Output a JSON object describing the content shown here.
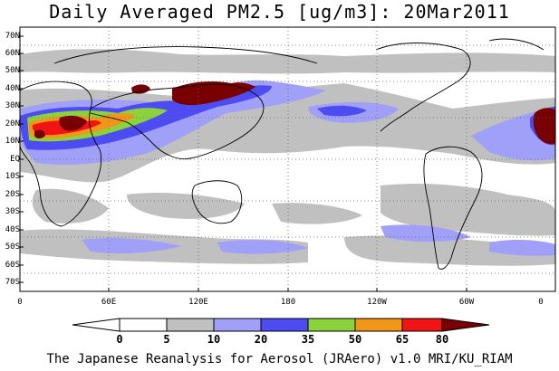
{
  "title": "Daily Averaged PM2.5 [ug/m3]: 20Mar2011",
  "footer": "The Japanese Reanalysis for Aerosol (JRAero) v1.0 MRI/KU_RIAM",
  "map": {
    "projection": "equirectangular",
    "lon_range": [
      0,
      360
    ],
    "lat_range": [
      -75,
      75
    ],
    "gridlines": "dotted",
    "lat_ticks": [
      "70N",
      "60N",
      "50N",
      "40N",
      "30N",
      "20N",
      "10N",
      "EQ",
      "10S",
      "20S",
      "30S",
      "40S",
      "50S",
      "60S",
      "70S"
    ],
    "lon_ticks": [
      "0",
      "60E",
      "120E",
      "180",
      "120W",
      "60W",
      "0"
    ]
  },
  "legend": {
    "thresholds": [
      "0",
      "5",
      "10",
      "20",
      "35",
      "50",
      "65",
      "80"
    ],
    "colors": [
      "#ffffff",
      "#c0c0c0",
      "#a0a0f8",
      "#4c4cf0",
      "#8cd23c",
      "#f09618",
      "#f01414",
      "#780000"
    ]
  }
}
